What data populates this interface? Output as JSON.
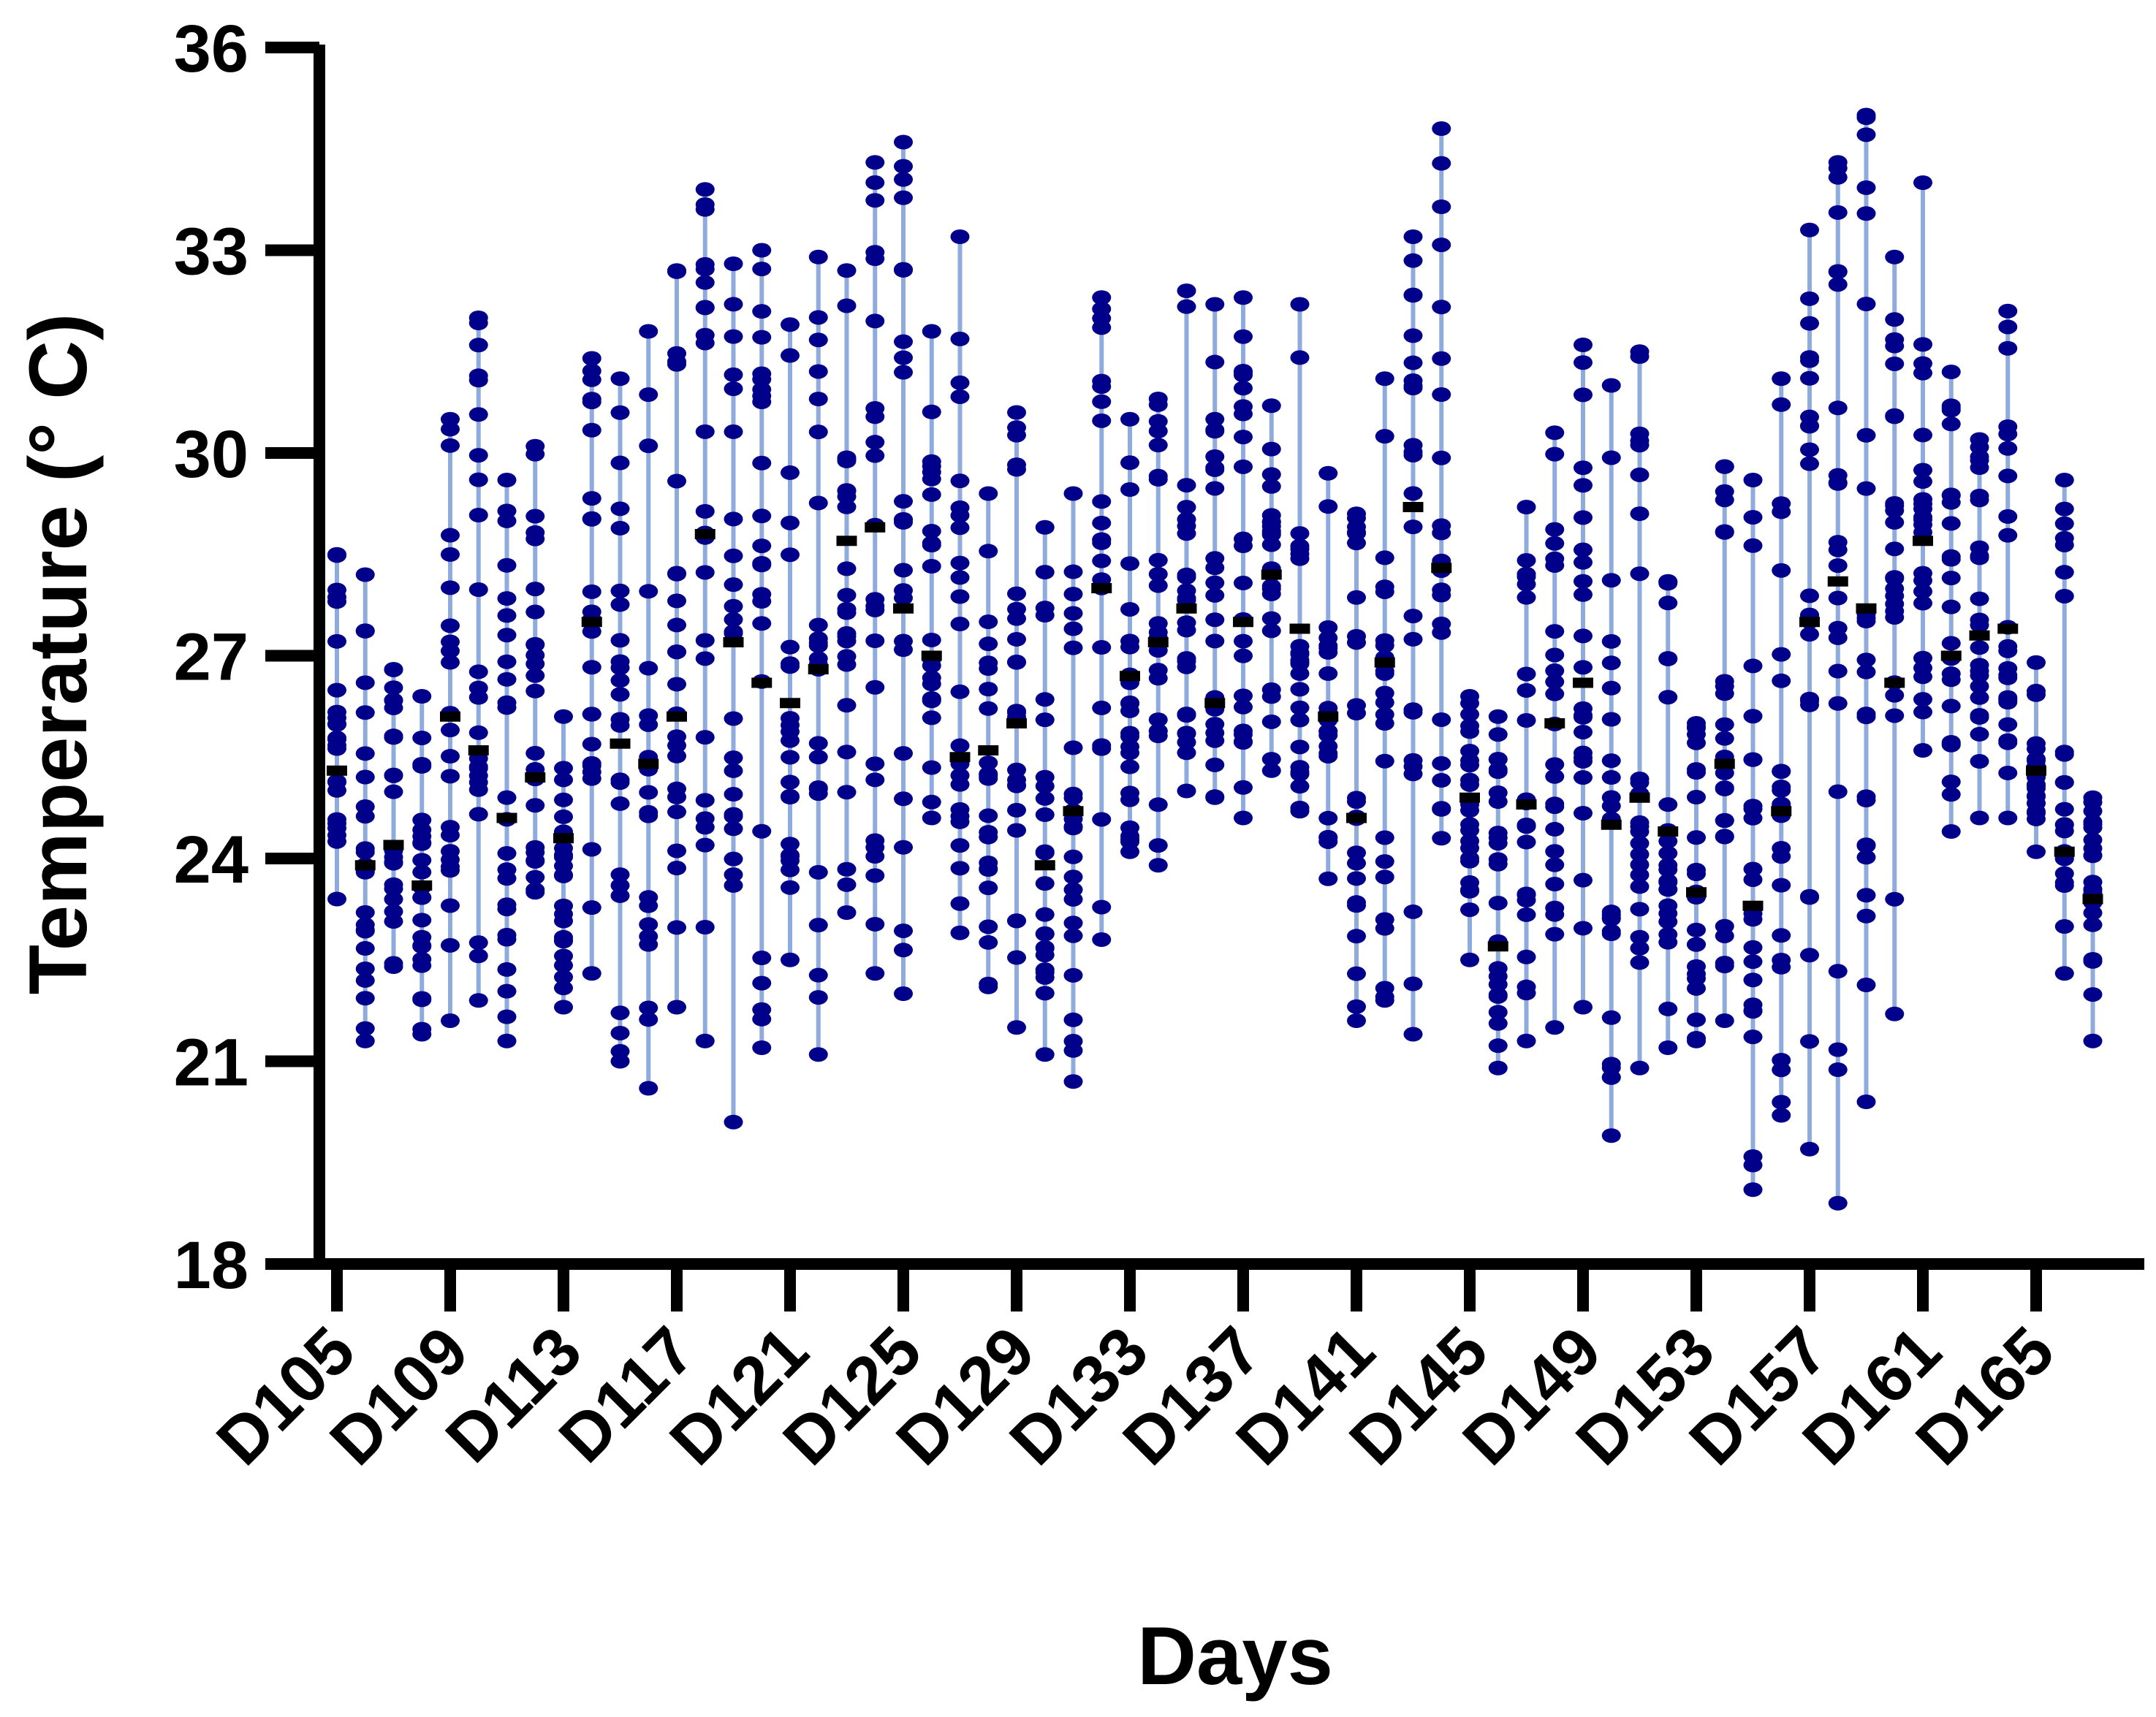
{
  "chart_data": {
    "type": "scatter",
    "title": "",
    "xlabel": "Days",
    "ylabel": "Temperature (° C)",
    "ylim": [
      18,
      36
    ],
    "yticks": [
      18,
      21,
      24,
      27,
      30,
      33,
      36
    ],
    "xtick_labels": [
      "D105",
      "D109",
      "D113",
      "D117",
      "D121",
      "D125",
      "D129",
      "D133",
      "D137",
      "D141",
      "D145",
      "D149",
      "D153",
      "D157",
      "D161",
      "D165"
    ],
    "grid": false,
    "legend": null,
    "description": "Daily temperature readings shown as dots connected by a vertical range line; black dash marks the daily mean.",
    "colors": {
      "dots": "#00008B",
      "range_line": "#8FAADC",
      "mean_marker": "#000000",
      "axis": "#000000"
    },
    "categories": [
      "D105",
      "D106",
      "D107",
      "D108",
      "D109",
      "D110",
      "D111",
      "D112",
      "D113",
      "D114",
      "D115",
      "D116",
      "D117",
      "D118",
      "D119",
      "D120",
      "D121",
      "D122",
      "D123",
      "D124",
      "D125",
      "D126",
      "D127",
      "D128",
      "D129",
      "D130",
      "D131",
      "D132",
      "D133",
      "D134",
      "D135",
      "D136",
      "D137",
      "D138",
      "D139",
      "D140",
      "D141",
      "D142",
      "D143",
      "D144",
      "D145",
      "D146",
      "D147",
      "D148",
      "D149",
      "D150",
      "D151",
      "D152",
      "D153",
      "D154",
      "D155",
      "D156",
      "D157",
      "D158",
      "D159",
      "D160",
      "D161",
      "D162",
      "D163",
      "D164",
      "D165",
      "D166",
      "D167"
    ],
    "series": [
      {
        "name": "max",
        "values": [
          28.5,
          28.2,
          26.8,
          26.4,
          30.5,
          32.0,
          29.6,
          30.1,
          26.1,
          31.4,
          31.1,
          31.8,
          32.7,
          33.9,
          32.8,
          33.0,
          31.9,
          32.9,
          32.7,
          34.3,
          34.6,
          31.8,
          33.2,
          29.4,
          30.6,
          28.9,
          29.4,
          32.3,
          30.5,
          30.8,
          32.4,
          32.2,
          32.3,
          30.7,
          32.2,
          29.7,
          29.1,
          31.1,
          33.2,
          34.8,
          26.4,
          26.1,
          29.2,
          30.3,
          31.6,
          31.0,
          31.5,
          28.1,
          26.0,
          29.8,
          29.6,
          31.1,
          33.3,
          34.3,
          35.0,
          32.9,
          34.0,
          31.2,
          30.2,
          32.1,
          26.9,
          29.6,
          24.9
        ]
      },
      {
        "name": "min",
        "values": [
          23.4,
          21.3,
          22.4,
          21.4,
          21.6,
          21.9,
          21.3,
          23.5,
          21.8,
          22.3,
          21.0,
          20.6,
          21.8,
          21.3,
          20.1,
          21.2,
          22.5,
          21.1,
          23.2,
          22.3,
          22.0,
          24.6,
          22.9,
          22.1,
          21.5,
          21.1,
          20.7,
          22.8,
          24.1,
          23.9,
          25.0,
          24.9,
          24.6,
          25.3,
          24.7,
          23.7,
          21.6,
          21.9,
          21.4,
          24.3,
          22.5,
          20.9,
          21.3,
          21.5,
          21.8,
          19.9,
          20.9,
          21.2,
          21.3,
          21.6,
          19.1,
          20.2,
          19.7,
          18.9,
          20.4,
          21.7,
          25.6,
          24.4,
          24.6,
          24.6,
          24.1,
          22.3,
          21.3
        ]
      },
      {
        "name": "mean",
        "values": [
          25.3,
          23.9,
          24.2,
          23.6,
          26.1,
          25.6,
          24.6,
          25.2,
          24.3,
          27.5,
          25.7,
          25.4,
          26.1,
          28.8,
          27.2,
          26.6,
          26.3,
          26.8,
          28.7,
          28.9,
          27.7,
          27.0,
          25.5,
          25.6,
          26.0,
          23.9,
          24.7,
          28.0,
          26.7,
          27.2,
          27.7,
          26.3,
          27.5,
          28.2,
          27.4,
          26.1,
          24.6,
          26.9,
          29.2,
          28.3,
          24.9,
          22.7,
          24.8,
          26.0,
          26.6,
          24.5,
          24.9,
          24.4,
          23.5,
          25.4,
          23.3,
          24.7,
          27.5,
          28.1,
          27.7,
          26.6,
          28.7,
          27.0,
          27.3,
          27.4,
          25.3,
          24.1,
          23.4
        ]
      }
    ]
  },
  "axes": {
    "y_title": "Temperature (° C)",
    "x_title": "Days"
  }
}
